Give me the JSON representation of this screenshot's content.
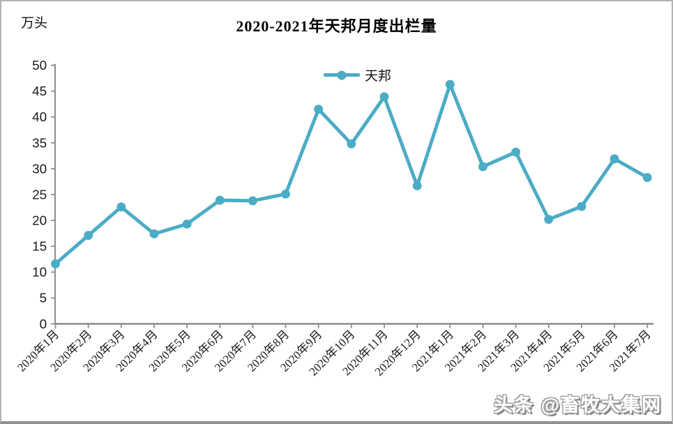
{
  "page": {
    "background": "#ffffff",
    "frame_border_color": "#b3b3b3"
  },
  "watermark": {
    "text": "头条 @畜牧大集网"
  },
  "chart_data": {
    "type": "line",
    "title": "2020-2021年天邦月度出栏量",
    "ylabel": "万头",
    "xlabel": "",
    "categories": [
      "2020年1月",
      "2020年2月",
      "2020年3月",
      "2020年4月",
      "2020年5月",
      "2020年6月",
      "2020年7月",
      "2020年8月",
      "2020年9月",
      "2020年10月",
      "2020年11月",
      "2020年12月",
      "2021年1月",
      "2021年2月",
      "2021年3月",
      "2021年4月",
      "2021年5月",
      "2021年6月",
      "2021年7月"
    ],
    "series": [
      {
        "name": "天邦",
        "values": [
          11.6,
          17.1,
          22.6,
          17.4,
          19.3,
          23.9,
          23.8,
          25.1,
          41.5,
          34.8,
          43.9,
          26.7,
          46.3,
          30.4,
          33.2,
          20.2,
          22.7,
          31.9,
          28.3
        ]
      }
    ],
    "ylim": [
      0,
      50
    ],
    "yticks": [
      0,
      5,
      10,
      15,
      20,
      25,
      30,
      35,
      40,
      45,
      50
    ],
    "grid": false,
    "legend_position": "top-center",
    "x_label_rotation": -45,
    "line_color": "#4BACC6",
    "axis_color": "#8C8C8C",
    "tick_label_color": "#1a1a1a"
  }
}
